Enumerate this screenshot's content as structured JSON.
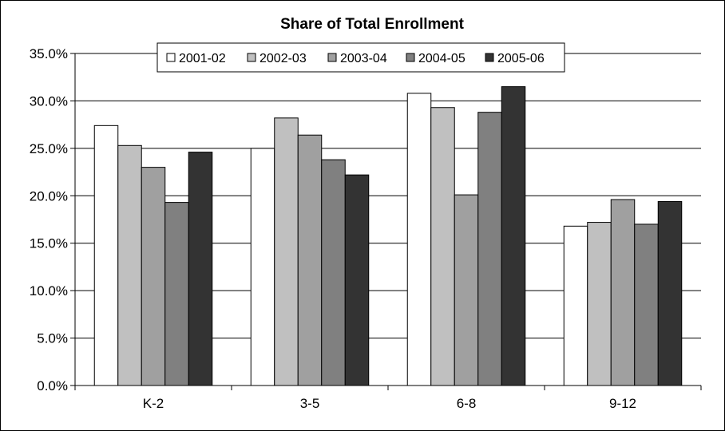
{
  "chart_data": {
    "type": "bar",
    "title": "Share of Total Enrollment",
    "xlabel": "",
    "ylabel": "",
    "categories": [
      "K-2",
      "3-5",
      "6-8",
      "9-12"
    ],
    "series": [
      {
        "name": "2001-02",
        "values": [
          27.4,
          25.0,
          30.8,
          16.8
        ],
        "color": "#ffffff"
      },
      {
        "name": "2002-03",
        "values": [
          25.3,
          28.2,
          29.3,
          17.2
        ],
        "color": "#c0c0c0"
      },
      {
        "name": "2003-04",
        "values": [
          23.0,
          26.4,
          20.1,
          19.6
        ],
        "color": "#a0a0a0"
      },
      {
        "name": "2004-05",
        "values": [
          19.3,
          23.8,
          28.8,
          17.0
        ],
        "color": "#808080"
      },
      {
        "name": "2005-06",
        "values": [
          24.6,
          22.2,
          31.5,
          19.4
        ],
        "color": "#333333"
      }
    ],
    "ylim": [
      0,
      35
    ],
    "yticks": [
      "0.0%",
      "5.0%",
      "10.0%",
      "15.0%",
      "20.0%",
      "25.0%",
      "30.0%",
      "35.0%"
    ],
    "grid": true,
    "legend_position": "top"
  }
}
